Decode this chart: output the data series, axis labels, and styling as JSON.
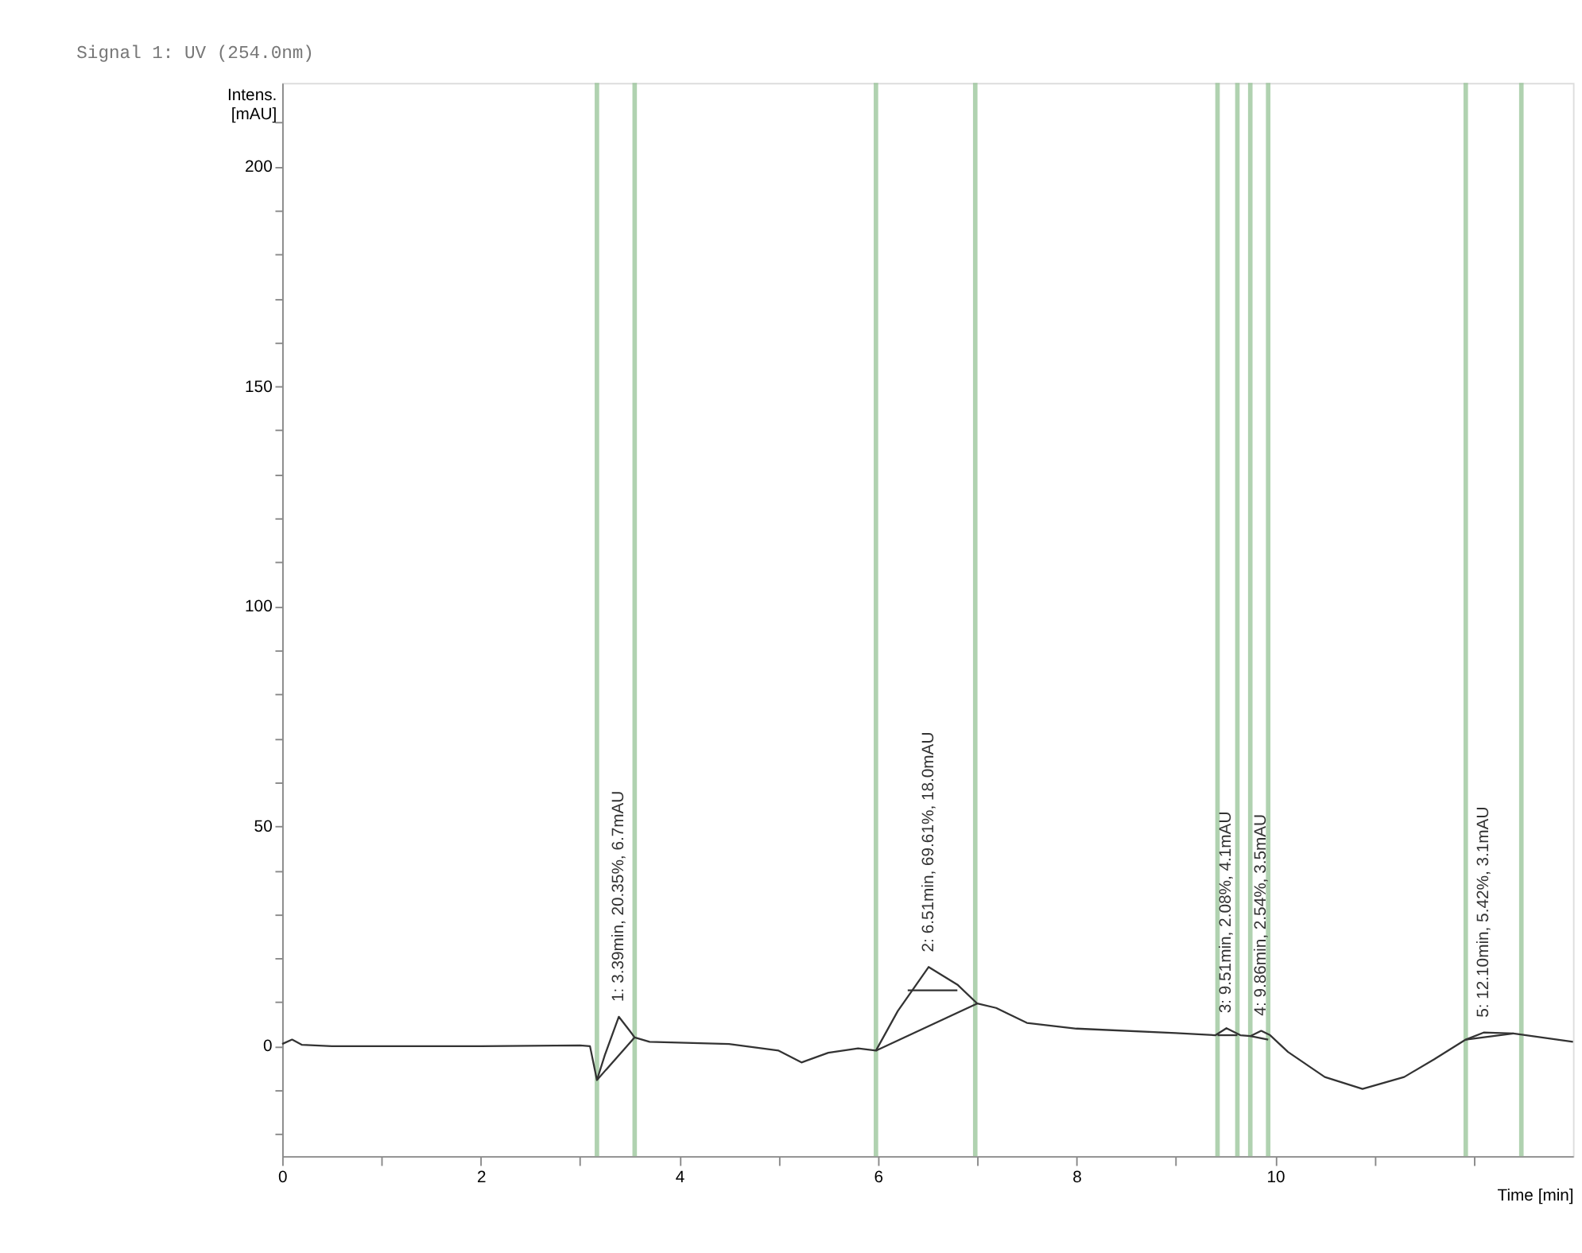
{
  "chart_data": {
    "type": "line",
    "title": "Signal 1: UV (254.0nm)",
    "xlabel": "Time [min]",
    "ylabel": "Intens.\n[mAU]",
    "xlim": [
      0,
      13
    ],
    "ylim": [
      -25,
      219
    ],
    "xticks": [
      0,
      {
        "value": 1,
        "label": null
      },
      2,
      {
        "value": 3,
        "label": null
      },
      4,
      {
        "value": 5,
        "label": null
      },
      6,
      {
        "value": 7,
        "label": null
      },
      8,
      {
        "value": 9,
        "label": null
      },
      10,
      {
        "value": 11,
        "label": null
      },
      {
        "value": 12,
        "label": null
      }
    ],
    "yticks": [
      {
        "value": -20,
        "label": null
      },
      {
        "value": -10,
        "label": null
      },
      0,
      {
        "value": 10,
        "label": null
      },
      {
        "value": 20,
        "label": null
      },
      {
        "value": 30,
        "label": null
      },
      {
        "value": 40,
        "label": null
      },
      50,
      {
        "value": 60,
        "label": null
      },
      {
        "value": 70,
        "label": null
      },
      {
        "value": 80,
        "label": null
      },
      {
        "value": 90,
        "label": null
      },
      100,
      {
        "value": 110,
        "label": null
      },
      {
        "value": 120,
        "label": null
      },
      {
        "value": 130,
        "label": null
      },
      {
        "value": 140,
        "label": null
      },
      150,
      {
        "value": 160,
        "label": null
      },
      {
        "value": 170,
        "label": null
      },
      {
        "value": 180,
        "label": null
      },
      {
        "value": 190,
        "label": null
      },
      200,
      {
        "value": 210,
        "label": null
      }
    ],
    "grid": false,
    "line_style": "solid",
    "series": [
      {
        "color": "#333333",
        "x": [
          0,
          0.1,
          0.2,
          0.5,
          1,
          2,
          3,
          3.1,
          3.17,
          3.25,
          3.39,
          3.5,
          3.55,
          3.7,
          4.5,
          5.0,
          5.23,
          5.5,
          5.8,
          5.98,
          6.2,
          6.51,
          6.8,
          7.0,
          7.19,
          7.5,
          8,
          9,
          9.4,
          9.51,
          9.65,
          9.75,
          9.86,
          9.95,
          10.13,
          10.5,
          10.88,
          11.3,
          11.6,
          11.92,
          12.1,
          12.4,
          13
        ],
        "values": [
          0.5,
          1.5,
          0.3,
          0,
          0,
          0,
          0.2,
          0,
          -7.7,
          -2,
          6.7,
          3.5,
          2,
          1,
          0.5,
          -1,
          -3.7,
          -1.5,
          -0.5,
          -1,
          8,
          18.0,
          14,
          9.7,
          8.7,
          5.3,
          4,
          3,
          2.5,
          4.1,
          2.5,
          2.3,
          3.5,
          2.5,
          -1.3,
          -7,
          -9.7,
          -7,
          -3,
          1.5,
          3.1,
          2.9,
          1
        ]
      },
      {
        "color": "#333333",
        "x": [
          3.17,
          3.55
        ],
        "values": [
          -7.7,
          2
        ]
      },
      {
        "color": "#333333",
        "x": [
          5.98,
          7.0
        ],
        "values": [
          -1,
          9.7
        ]
      },
      {
        "color": "#333333",
        "x": [
          6.3,
          6.8
        ],
        "values": [
          12.7,
          12.7
        ]
      },
      {
        "color": "#333333",
        "x": [
          9.42,
          9.62
        ],
        "values": [
          2.5,
          2.5
        ]
      },
      {
        "color": "#333333",
        "x": [
          9.75,
          9.93
        ],
        "values": [
          2.3,
          1.5
        ]
      },
      {
        "color": "#333333",
        "x": [
          11.92,
          12.4
        ],
        "values": [
          1.5,
          2.9
        ]
      }
    ],
    "ref_lines": [
      {
        "axis": "x",
        "value": 3.17,
        "color": "#8fbf8f"
      },
      {
        "axis": "x",
        "value": 3.55,
        "color": "#8fbf8f"
      },
      {
        "axis": "x",
        "value": 5.98,
        "color": "#8fbf8f"
      },
      {
        "axis": "x",
        "value": 6.98,
        "color": "#8fbf8f"
      },
      {
        "axis": "x",
        "value": 9.42,
        "color": "#8fbf8f"
      },
      {
        "axis": "x",
        "value": 9.62,
        "color": "#8fbf8f"
      },
      {
        "axis": "x",
        "value": 9.75,
        "color": "#8fbf8f"
      },
      {
        "axis": "x",
        "value": 9.93,
        "color": "#8fbf8f"
      },
      {
        "axis": "x",
        "value": 11.92,
        "color": "#8fbf8f"
      },
      {
        "axis": "x",
        "value": 12.48,
        "color": "#8fbf8f"
      }
    ],
    "annotations": [
      {
        "text": "1: 3.39min, 20.35%, 6.7mAU",
        "x": 3.39,
        "y": 6.7
      },
      {
        "text": "2: 6.51min, 69.61%, 18.0mAU",
        "x": 6.51,
        "y": 18.0
      },
      {
        "text": "3: 9.51min, 2.08%, 4.1mAU",
        "x": 9.51,
        "y": 4.1
      },
      {
        "text": "4: 9.86min, 2.54%, 3.5mAU",
        "x": 9.86,
        "y": 3.5
      },
      {
        "text": "5: 12.10min, 5.42%, 3.1mAU",
        "x": 12.1,
        "y": 3.1
      }
    ]
  }
}
